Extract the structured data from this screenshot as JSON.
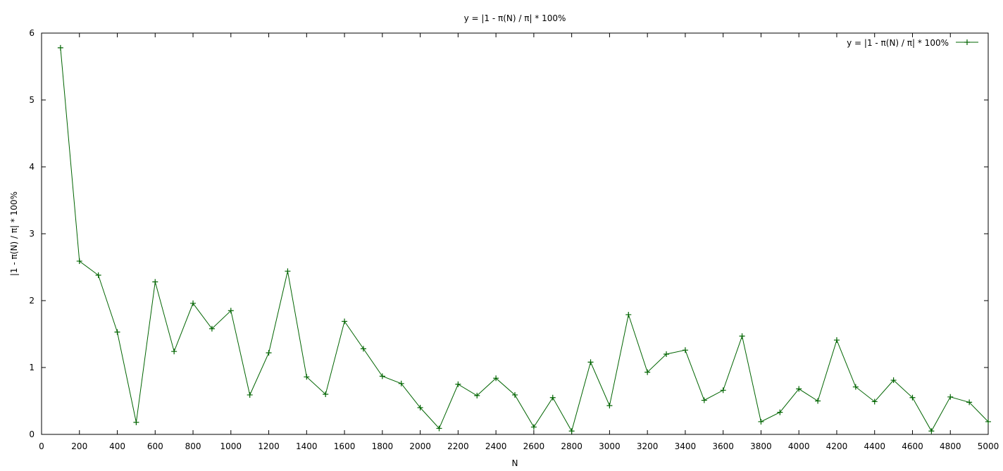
{
  "chart_data": {
    "type": "line",
    "title": "y = |1 - π(N) / π| * 100%",
    "xlabel": "N",
    "ylabel": "|1 - π(N) / π| * 100%",
    "xlim": [
      0,
      5000
    ],
    "ylim": [
      0,
      6
    ],
    "x_ticks": [
      0,
      200,
      400,
      600,
      800,
      1000,
      1200,
      1400,
      1600,
      1800,
      2000,
      2200,
      2400,
      2600,
      2800,
      3000,
      3200,
      3400,
      3600,
      3800,
      4000,
      4200,
      4400,
      4600,
      4800,
      5000
    ],
    "y_ticks": [
      0,
      1,
      2,
      3,
      4,
      5,
      6
    ],
    "grid": false,
    "legend_position": "top-right",
    "line_color": "#006400",
    "series": [
      {
        "name": "y = |1 - π(N) / π| * 100%",
        "x": [
          100,
          200,
          300,
          400,
          500,
          600,
          700,
          800,
          900,
          1000,
          1100,
          1200,
          1300,
          1400,
          1500,
          1600,
          1700,
          1800,
          1900,
          2000,
          2100,
          2200,
          2300,
          2400,
          2500,
          2600,
          2700,
          2800,
          2900,
          3000,
          3100,
          3200,
          3300,
          3400,
          3500,
          3600,
          3700,
          3800,
          3900,
          4000,
          4100,
          4200,
          4300,
          4400,
          4500,
          4600,
          4700,
          4800,
          4900,
          5000
        ],
        "values": [
          5.78,
          2.59,
          2.38,
          1.53,
          0.18,
          2.28,
          1.24,
          1.96,
          1.58,
          1.85,
          0.59,
          1.22,
          2.44,
          0.86,
          0.6,
          1.69,
          1.28,
          0.87,
          0.76,
          0.4,
          0.09,
          0.75,
          0.58,
          0.84,
          0.59,
          0.11,
          0.55,
          0.05,
          1.08,
          0.43,
          1.79,
          0.93,
          1.2,
          1.26,
          0.51,
          0.66,
          1.47,
          0.19,
          0.33,
          0.68,
          0.5,
          1.41,
          0.71,
          0.49,
          0.81,
          0.55,
          0.05,
          0.56,
          0.48,
          0.19
        ]
      }
    ]
  }
}
